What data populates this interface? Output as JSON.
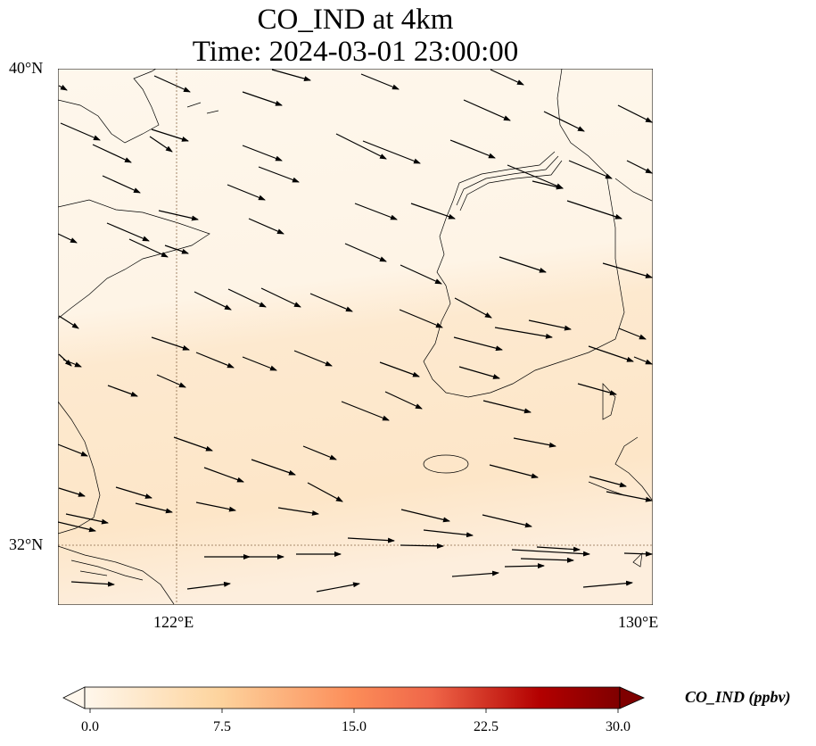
{
  "title": {
    "line1": "CO_IND at 4km",
    "line2": "Time: 2024-03-01 23:00:00"
  },
  "axes": {
    "lat_ticks": [
      "40°N",
      "32°N"
    ],
    "lon_ticks": [
      "122°E",
      "130°E"
    ],
    "extent": {
      "lon": [
        120,
        130
      ],
      "lat": [
        31,
        40
      ]
    }
  },
  "colorbar": {
    "label": "CO_IND (ppbv)",
    "ticks": [
      "0.0",
      "7.5",
      "15.0",
      "22.5",
      "30.0"
    ],
    "range": [
      0,
      30
    ],
    "colormap": "OrRd",
    "colors": [
      "#fff7ec",
      "#fdd49e",
      "#fc8d59",
      "#d7301f",
      "#7f0000"
    ],
    "extend": "both"
  },
  "field": {
    "north_color": "#fef6ea",
    "south_color": "#fde6c8"
  }
}
